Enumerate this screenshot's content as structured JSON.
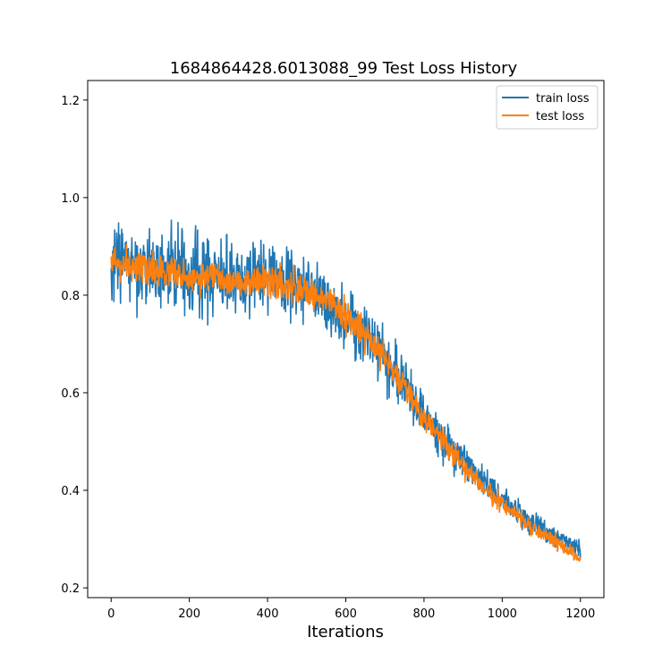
{
  "chart_data": {
    "type": "line",
    "title": "1684864428.6013088_99 Test Loss History",
    "xlabel": "Iterations",
    "ylabel": "",
    "xlim": [
      -60,
      1260
    ],
    "ylim": [
      0.18,
      1.24
    ],
    "xticks": [
      0,
      200,
      400,
      600,
      800,
      1000,
      1200
    ],
    "yticks": [
      0.2,
      0.4,
      0.6,
      0.8,
      1.0,
      1.2
    ],
    "ytick_labels": [
      "0.2",
      "0.4",
      "0.6",
      "0.8",
      "1.0",
      "1.2"
    ],
    "grid": false,
    "legend_position": "top-right",
    "series": [
      {
        "name": "train loss",
        "color": "#1f77b4",
        "x": [
          0,
          50,
          100,
          150,
          200,
          250,
          300,
          350,
          400,
          450,
          500,
          550,
          600,
          650,
          700,
          750,
          800,
          850,
          900,
          950,
          1000,
          1050,
          1100,
          1150,
          1200
        ],
        "y": [
          0.88,
          0.86,
          0.85,
          0.85,
          0.84,
          0.84,
          0.83,
          0.83,
          0.83,
          0.82,
          0.81,
          0.79,
          0.76,
          0.72,
          0.67,
          0.62,
          0.56,
          0.5,
          0.46,
          0.42,
          0.38,
          0.35,
          0.32,
          0.3,
          0.28
        ],
        "noise_amplitude": [
          0.14,
          0.13,
          0.13,
          0.12,
          0.12,
          0.12,
          0.12,
          0.11,
          0.11,
          0.11,
          0.1,
          0.1,
          0.1,
          0.09,
          0.09,
          0.08,
          0.07,
          0.07,
          0.06,
          0.05,
          0.045,
          0.04,
          0.035,
          0.03,
          0.03
        ]
      },
      {
        "name": "test loss",
        "color": "#ff7f0e",
        "x": [
          0,
          50,
          100,
          150,
          200,
          250,
          300,
          350,
          400,
          450,
          500,
          550,
          600,
          650,
          700,
          750,
          800,
          850,
          900,
          950,
          1000,
          1050,
          1100,
          1150,
          1200
        ],
        "y": [
          0.87,
          0.86,
          0.85,
          0.85,
          0.84,
          0.84,
          0.83,
          0.83,
          0.83,
          0.82,
          0.81,
          0.79,
          0.76,
          0.72,
          0.67,
          0.61,
          0.55,
          0.5,
          0.45,
          0.41,
          0.37,
          0.34,
          0.31,
          0.29,
          0.26
        ],
        "noise_amplitude": [
          0.05,
          0.05,
          0.05,
          0.05,
          0.05,
          0.05,
          0.05,
          0.05,
          0.05,
          0.05,
          0.05,
          0.05,
          0.05,
          0.045,
          0.045,
          0.04,
          0.04,
          0.035,
          0.035,
          0.03,
          0.03,
          0.025,
          0.025,
          0.02,
          0.02
        ]
      }
    ]
  }
}
